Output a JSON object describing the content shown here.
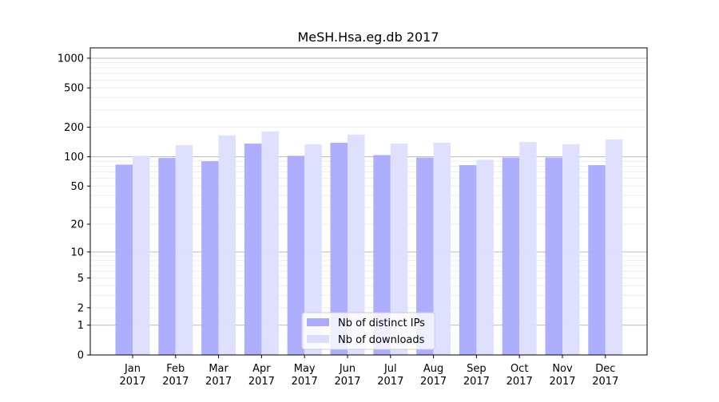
{
  "chart_data": {
    "type": "bar",
    "title": "MeSH.Hsa.eg.db 2017",
    "xlabel": "",
    "ylabel": "",
    "yscale": "log(1+y)",
    "ylim": [
      0,
      1200
    ],
    "yticks": [
      0,
      1,
      2,
      5,
      10,
      20,
      50,
      100,
      200,
      500,
      1000
    ],
    "grid": true,
    "legend_position": "lower-center",
    "categories": [
      "Jan\n2017",
      "Feb\n2017",
      "Mar\n2017",
      "Apr\n2017",
      "May\n2017",
      "Jun\n2017",
      "Jul\n2017",
      "Aug\n2017",
      "Sep\n2017",
      "Oct\n2017",
      "Nov\n2017",
      "Dec\n2017"
    ],
    "series": [
      {
        "name": "Nb of distinct IPs",
        "color": "#aaaaff",
        "values": [
          83,
          97,
          90,
          136,
          102,
          139,
          104,
          98,
          82,
          98,
          98,
          82
        ]
      },
      {
        "name": "Nb of downloads",
        "color": "#ddddff",
        "values": [
          102,
          131,
          165,
          181,
          134,
          168,
          136,
          139,
          93,
          141,
          134,
          150
        ]
      }
    ]
  }
}
